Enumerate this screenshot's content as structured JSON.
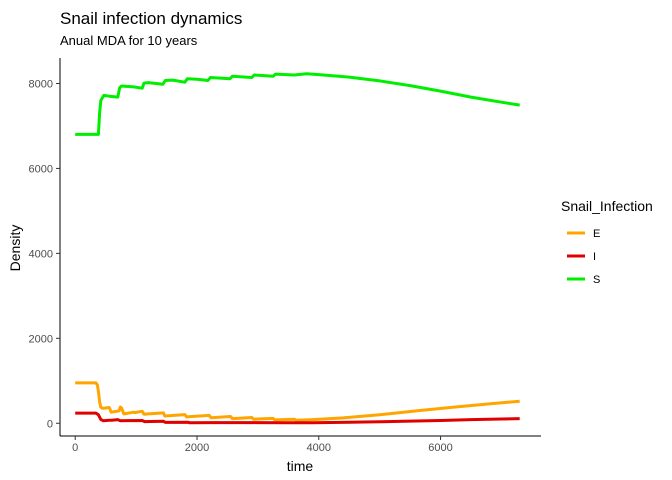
{
  "chart_data": {
    "type": "line",
    "title": "Snail infection dynamics",
    "subtitle": "Anual MDA for 10 years",
    "xlabel": "time",
    "ylabel": "Density",
    "xlim": [
      -250,
      7650
    ],
    "ylim": [
      -300,
      8600
    ],
    "xticks": [
      0,
      2000,
      4000,
      6000
    ],
    "yticks": [
      0,
      2000,
      4000,
      6000,
      8000
    ],
    "grid": false,
    "legend": {
      "title": "Snail_Infection",
      "position": "right"
    },
    "series": [
      {
        "name": "E",
        "color": "#FFA500",
        "points": [
          [
            0,
            950
          ],
          [
            340,
            950
          ],
          [
            365,
            900
          ],
          [
            385,
            700
          ],
          [
            400,
            500
          ],
          [
            420,
            380
          ],
          [
            450,
            350
          ],
          [
            560,
            370
          ],
          [
            590,
            260
          ],
          [
            720,
            290
          ],
          [
            740,
            380
          ],
          [
            760,
            360
          ],
          [
            800,
            220
          ],
          [
            960,
            260
          ],
          [
            980,
            250
          ],
          [
            1100,
            285
          ],
          [
            1130,
            210
          ],
          [
            1200,
            220
          ],
          [
            1450,
            245
          ],
          [
            1470,
            170
          ],
          [
            1800,
            205
          ],
          [
            1830,
            150
          ],
          [
            2200,
            185
          ],
          [
            2230,
            130
          ],
          [
            2550,
            160
          ],
          [
            2580,
            110
          ],
          [
            2900,
            135
          ],
          [
            2930,
            95
          ],
          [
            3250,
            115
          ],
          [
            3280,
            80
          ],
          [
            3600,
            95
          ],
          [
            3630,
            70
          ],
          [
            3900,
            85
          ],
          [
            4400,
            125
          ],
          [
            5000,
            200
          ],
          [
            5600,
            290
          ],
          [
            6200,
            375
          ],
          [
            6800,
            455
          ],
          [
            7300,
            520
          ]
        ]
      },
      {
        "name": "I",
        "color": "#E00000",
        "points": [
          [
            0,
            240
          ],
          [
            340,
            240
          ],
          [
            380,
            200
          ],
          [
            420,
            90
          ],
          [
            460,
            60
          ],
          [
            560,
            70
          ],
          [
            600,
            70
          ],
          [
            700,
            85
          ],
          [
            740,
            60
          ],
          [
            1100,
            65
          ],
          [
            1140,
            40
          ],
          [
            1450,
            45
          ],
          [
            1480,
            20
          ],
          [
            1850,
            25
          ],
          [
            1880,
            10
          ],
          [
            2250,
            15
          ],
          [
            3500,
            12
          ],
          [
            3900,
            12
          ],
          [
            4500,
            25
          ],
          [
            5000,
            35
          ],
          [
            5500,
            50
          ],
          [
            6000,
            65
          ],
          [
            6500,
            85
          ],
          [
            7000,
            100
          ],
          [
            7300,
            110
          ]
        ]
      },
      {
        "name": "S",
        "color": "#00EE00",
        "points": [
          [
            0,
            6800
          ],
          [
            380,
            6800
          ],
          [
            400,
            7300
          ],
          [
            420,
            7600
          ],
          [
            470,
            7720
          ],
          [
            560,
            7700
          ],
          [
            700,
            7680
          ],
          [
            730,
            7900
          ],
          [
            760,
            7940
          ],
          [
            960,
            7920
          ],
          [
            1100,
            7890
          ],
          [
            1130,
            8010
          ],
          [
            1200,
            8020
          ],
          [
            1440,
            7980
          ],
          [
            1480,
            8070
          ],
          [
            1600,
            8080
          ],
          [
            1800,
            8030
          ],
          [
            1840,
            8110
          ],
          [
            2000,
            8100
          ],
          [
            2180,
            8070
          ],
          [
            2220,
            8140
          ],
          [
            2540,
            8110
          ],
          [
            2580,
            8170
          ],
          [
            2900,
            8140
          ],
          [
            2940,
            8200
          ],
          [
            3250,
            8170
          ],
          [
            3290,
            8220
          ],
          [
            3600,
            8200
          ],
          [
            3800,
            8230
          ],
          [
            4000,
            8210
          ],
          [
            4500,
            8150
          ],
          [
            5000,
            8060
          ],
          [
            5500,
            7950
          ],
          [
            6000,
            7820
          ],
          [
            6500,
            7680
          ],
          [
            7000,
            7560
          ],
          [
            7300,
            7490
          ]
        ]
      }
    ]
  }
}
